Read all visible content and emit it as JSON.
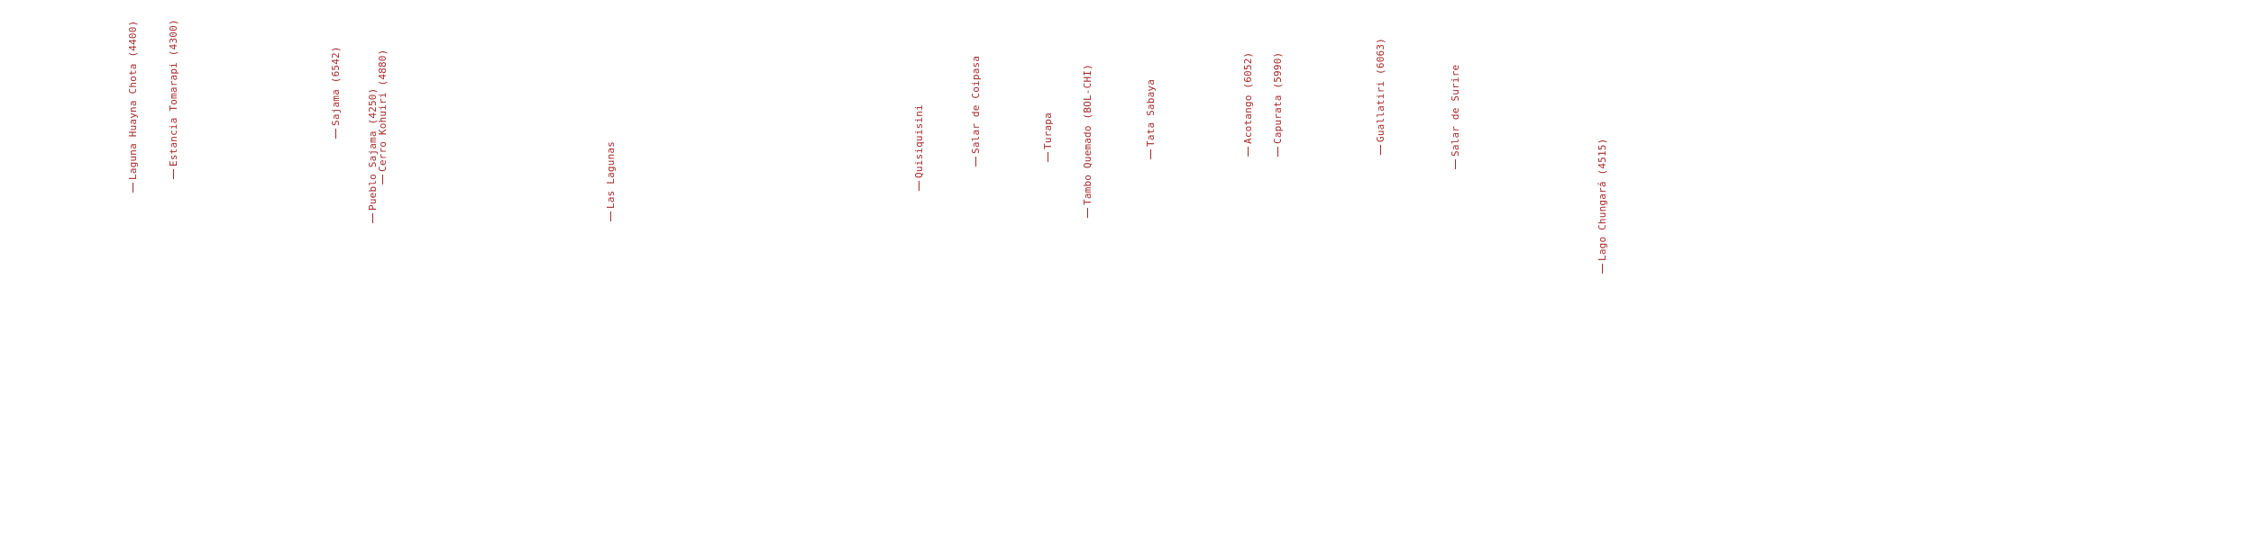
{
  "style": {
    "label_color": "#a52a2a"
  },
  "labels": [
    "Laguna Huayna Chota (4400)",
    "Estancia Tomarapi (4300)",
    "Sajama (6542)",
    "Pueblo Sajama (4250)",
    "Cerro Kohuiri (4880)",
    "Las Lagunas",
    "Quisiquisini",
    "Salar de Coipasa",
    "Turapa",
    "Tambo Quemado (BOL-CHI)",
    "Tata Sabaya",
    "Acotango (6052)",
    "Capurata (5990)",
    "Guallatiri (6063)",
    "Salar de Surire",
    "Lago Chungará (4515)"
  ]
}
